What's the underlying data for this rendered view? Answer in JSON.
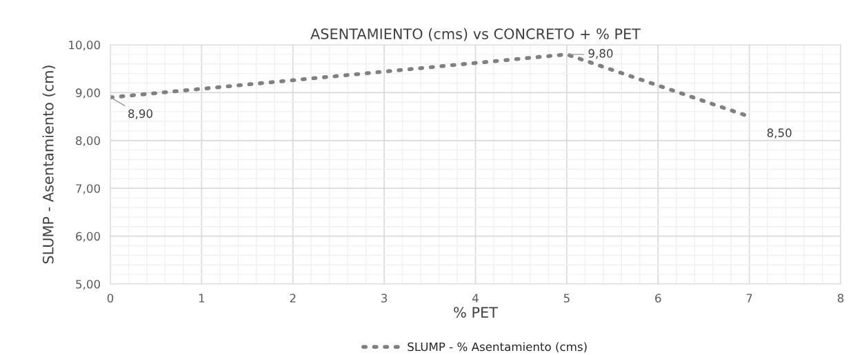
{
  "chart_data": {
    "type": "line",
    "title": "ASENTAMIENTO (cms) vs CONCRETO + % PET",
    "xlabel": "% PET",
    "ylabel": "SLUMP - Asentamiento (cm)",
    "x": [
      0,
      5,
      7
    ],
    "series": [
      {
        "name": "SLUMP - % Asentamiento (cms)",
        "color": "#808080",
        "values": [
          8.9,
          9.8,
          8.5
        ],
        "value_labels": [
          "8,90",
          "9,80",
          "8,50"
        ]
      }
    ],
    "xlim": [
      0,
      8
    ],
    "xticks": [
      0,
      1,
      2,
      3,
      4,
      5,
      6,
      7,
      8
    ],
    "ylim": [
      5,
      10
    ],
    "yticks": [
      {
        "value": 5,
        "label": "5,00"
      },
      {
        "value": 6,
        "label": "6,00"
      },
      {
        "value": 7,
        "label": "7,00"
      },
      {
        "value": 8,
        "label": "8,00"
      },
      {
        "value": 9,
        "label": "9,00"
      },
      {
        "value": 10,
        "label": "10,00"
      }
    ],
    "grid": true,
    "legend": "bottom",
    "marker": "none",
    "line_style": "dotted"
  }
}
